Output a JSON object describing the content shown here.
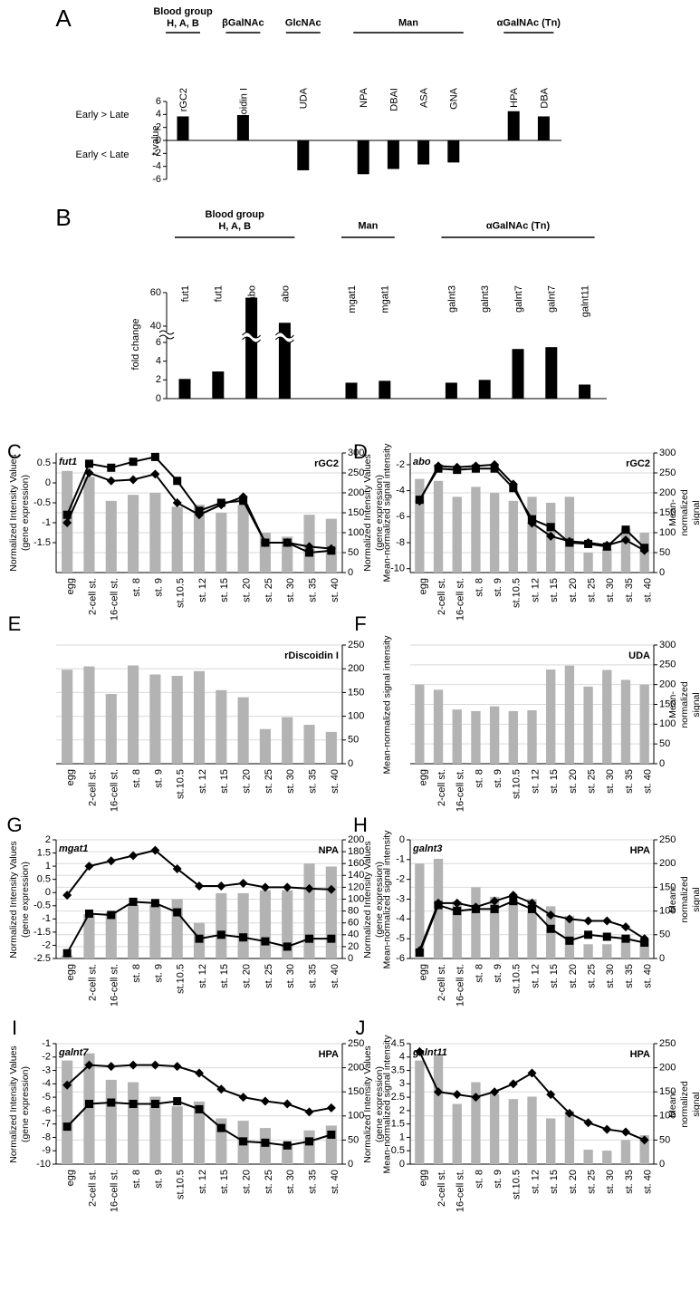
{
  "chart_data": [
    {
      "type": "grouped-bar",
      "panel": "A",
      "ylabel": "t-value",
      "annotations": [
        "Early > Late",
        "Early < Late"
      ],
      "ylim": [
        -6,
        6
      ],
      "yticks": [
        -6,
        -4,
        -2,
        0,
        2,
        4,
        6
      ],
      "color": "#000000",
      "groups": [
        {
          "label": "Blood group\nH, A, B",
          "categories": [
            "rGC2"
          ],
          "values": [
            3.7
          ]
        },
        {
          "label": "βGalNAc",
          "categories": [
            "rDiscoidin I"
          ],
          "values": [
            3.9
          ]
        },
        {
          "label": "GlcNAc",
          "categories": [
            "UDA"
          ],
          "values": [
            -4.6
          ]
        },
        {
          "label": "Man",
          "categories": [
            "NPA",
            "DBAI",
            "ASA",
            "GNA"
          ],
          "values": [
            -5.2,
            -4.4,
            -3.7,
            -3.4
          ]
        },
        {
          "label": "αGalNAc (Tn)",
          "categories": [
            "HPA",
            "DBA"
          ],
          "values": [
            4.5,
            3.7
          ]
        }
      ]
    },
    {
      "type": "grouped-bar",
      "panel": "B",
      "ylabel": "fold change",
      "ylim": [
        0,
        60
      ],
      "ybreak": [
        6,
        40
      ],
      "yticks": [
        0,
        2,
        4,
        6,
        40,
        60
      ],
      "color": "#000000",
      "groups": [
        {
          "label": "Blood group\nH, A, B",
          "categories": [
            "fut1",
            "fut1",
            "abo",
            "abo"
          ],
          "values": [
            2.1,
            2.9,
            57,
            42
          ]
        },
        {
          "label": "Man",
          "categories": [
            "mgat1",
            "mgat1"
          ],
          "values": [
            1.7,
            1.9
          ]
        },
        {
          "label": "αGalNAc (Tn)",
          "categories": [
            "galnt3",
            "galnt3",
            "galnt7",
            "galnt7",
            "galnt11"
          ],
          "values": [
            1.7,
            2.0,
            5.3,
            5.5,
            1.5
          ]
        }
      ]
    },
    {
      "type": "combo",
      "panel": "C",
      "gene": "fut1",
      "lectin": "rGC2",
      "ylabel": "Normalized Intensity Values\n(gene expression)",
      "y2label": "Mean-normalized signal intensity",
      "categories": [
        "egg",
        "2-cell st.",
        "16-cell st.",
        "st. 8",
        "st. 9",
        "st.10.5",
        "st. 12",
        "st. 15",
        "st. 20",
        "st. 25",
        "st. 30",
        "st. 35",
        "st. 40"
      ],
      "ylim": [
        -2.25,
        0.75
      ],
      "yticks": [
        -1.5,
        -1,
        -0.5,
        0,
        0.5
      ],
      "y2lim": [
        0,
        300
      ],
      "y2ticks": [
        0,
        50,
        100,
        150,
        200,
        250,
        300
      ],
      "grid": true,
      "series": [
        {
          "type": "bar",
          "axis": "y2",
          "color": "#b3b3b3",
          "values": [
            255,
            240,
            180,
            195,
            200,
            165,
            170,
            150,
            170,
            100,
            90,
            145,
            135
          ]
        },
        {
          "type": "line",
          "marker": "diamond",
          "color": "#000000",
          "values": [
            -1.0,
            0.25,
            0.05,
            0.08,
            0.22,
            -0.5,
            -0.8,
            -0.55,
            -0.35,
            -1.5,
            -1.5,
            -1.6,
            -1.65
          ]
        },
        {
          "type": "line",
          "marker": "square",
          "color": "#000000",
          "values": [
            -0.8,
            0.48,
            0.38,
            0.53,
            0.65,
            0.05,
            -0.7,
            -0.5,
            -0.45,
            -1.5,
            -1.5,
            -1.75,
            -1.7
          ]
        }
      ]
    },
    {
      "type": "combo",
      "panel": "D",
      "gene": "abo",
      "lectin": "rGC2",
      "ylabel": "Normalized Intensity Values\n(gene expression)",
      "y2label": "Mean-normalized signal intensity",
      "categories": [
        "egg",
        "2-cell st.",
        "16-cell st.",
        "st. 8",
        "st. 9",
        "st.10.5",
        "st. 12",
        "st. 15",
        "st. 20",
        "st. 25",
        "st. 30",
        "st. 35",
        "st. 40"
      ],
      "ylim": [
        -10.3,
        -1.1
      ],
      "yticks": [
        -10,
        -8,
        -6,
        -4,
        -2
      ],
      "y2lim": [
        0,
        300
      ],
      "y2ticks": [
        0,
        50,
        100,
        150,
        200,
        250,
        300
      ],
      "grid": true,
      "series": [
        {
          "type": "bar",
          "axis": "y2",
          "color": "#b3b3b3",
          "values": [
            235,
            230,
            190,
            215,
            200,
            180,
            190,
            175,
            190,
            50,
            60,
            110,
            100
          ]
        },
        {
          "type": "line",
          "marker": "diamond",
          "color": "#000000",
          "values": [
            -4.8,
            -2.1,
            -2.2,
            -2.1,
            -2.0,
            -3.5,
            -6.5,
            -7.5,
            -7.9,
            -8.0,
            -8.2,
            -7.8,
            -8.6
          ]
        },
        {
          "type": "line",
          "marker": "square",
          "color": "#000000",
          "values": [
            -4.7,
            -2.3,
            -2.4,
            -2.3,
            -2.3,
            -3.8,
            -6.2,
            -6.8,
            -8.0,
            -8.1,
            -8.3,
            -7.0,
            -8.4
          ]
        }
      ]
    },
    {
      "type": "combo",
      "panel": "E",
      "lectin": "rDiscoidin I",
      "y2label": "Mean-normalized signal intensity",
      "categories": [
        "egg",
        "2-cell st.",
        "16-cell st.",
        "st. 8",
        "st. 9",
        "st.10.5",
        "st. 12",
        "st. 15",
        "st. 20",
        "st. 25",
        "st. 30",
        "st. 35",
        "st. 40"
      ],
      "y2lim": [
        0,
        250
      ],
      "y2ticks": [
        0,
        50,
        100,
        150,
        200,
        250
      ],
      "grid": true,
      "series": [
        {
          "type": "bar",
          "axis": "y2",
          "color": "#b3b3b3",
          "values": [
            198,
            205,
            147,
            207,
            188,
            185,
            195,
            155,
            140,
            73,
            98,
            82,
            67
          ]
        }
      ]
    },
    {
      "type": "combo",
      "panel": "F",
      "lectin": "UDA",
      "y2label": "Mean-normalized signal intensity",
      "categories": [
        "egg",
        "2-cell st.",
        "16-cell st.",
        "st. 8",
        "st. 9",
        "st.10.5",
        "st. 12",
        "st. 15",
        "st. 20",
        "st. 25",
        "st. 30",
        "st. 35",
        "st. 40"
      ],
      "y2lim": [
        0,
        300
      ],
      "y2ticks": [
        0,
        50,
        100,
        150,
        200,
        250,
        300
      ],
      "grid": true,
      "series": [
        {
          "type": "bar",
          "axis": "y2",
          "color": "#b3b3b3",
          "values": [
            200,
            187,
            137,
            133,
            145,
            133,
            135,
            238,
            248,
            195,
            237,
            212,
            200
          ]
        }
      ]
    },
    {
      "type": "combo",
      "panel": "G",
      "gene": "mgat1",
      "lectin": "NPA",
      "ylabel": "Normalized Intensity Values\n(gene expression)",
      "y2label": "Mean-normalized signal intensity",
      "categories": [
        "egg",
        "2-cell st.",
        "16-cell st.",
        "st. 8",
        "st. 9",
        "st.10.5",
        "st. 12",
        "st. 15",
        "st. 20",
        "st. 25",
        "st. 30",
        "st. 35",
        "st. 40"
      ],
      "ylim": [
        -2.5,
        2
      ],
      "yticks": [
        -2.5,
        -2,
        -1.5,
        -1,
        -0.5,
        0,
        0.5,
        1,
        1.5,
        2
      ],
      "y2lim": [
        0,
        200
      ],
      "y2ticks": [
        0,
        20,
        40,
        60,
        80,
        100,
        120,
        140,
        160,
        180,
        200
      ],
      "grid": true,
      "series": [
        {
          "type": "bar",
          "axis": "y2",
          "color": "#b3b3b3",
          "values": [
            5,
            75,
            78,
            90,
            90,
            100,
            60,
            110,
            110,
            115,
            115,
            160,
            155
          ]
        },
        {
          "type": "line",
          "marker": "diamond",
          "color": "#000000",
          "values": [
            -0.1,
            1.0,
            1.2,
            1.4,
            1.6,
            0.9,
            0.25,
            0.25,
            0.35,
            0.2,
            0.2,
            0.15,
            0.12
          ]
        },
        {
          "type": "line",
          "marker": "square",
          "color": "#000000",
          "values": [
            -2.3,
            -0.8,
            -0.85,
            -0.35,
            -0.4,
            -0.75,
            -1.75,
            -1.6,
            -1.7,
            -1.85,
            -2.05,
            -1.75,
            -1.75
          ]
        }
      ]
    },
    {
      "type": "combo",
      "panel": "H",
      "gene": "galnt3",
      "lectin": "HPA",
      "ylabel": "Normalized Intensity Values\n(gene expression)",
      "y2label": "Mean-normalized signal intensity",
      "categories": [
        "egg",
        "2-cell st.",
        "16-cell st.",
        "st. 8",
        "st. 9",
        "st.10.5",
        "st. 12",
        "st. 15",
        "st. 20",
        "st. 25",
        "st. 30",
        "st. 35",
        "st. 40"
      ],
      "ylim": [
        -6,
        0
      ],
      "yticks": [
        -6,
        -5,
        -4,
        -3,
        -2,
        -1,
        0
      ],
      "y2lim": [
        0,
        250
      ],
      "y2ticks": [
        0,
        50,
        100,
        150,
        200,
        250
      ],
      "grid": true,
      "series": [
        {
          "type": "bar",
          "axis": "y2",
          "color": "#b3b3b3",
          "values": [
            200,
            210,
            120,
            150,
            130,
            120,
            125,
            110,
            90,
            30,
            30,
            50,
            40
          ]
        },
        {
          "type": "line",
          "marker": "diamond",
          "color": "#000000",
          "values": [
            -5.6,
            -3.2,
            -3.2,
            -3.4,
            -3.1,
            -2.8,
            -3.2,
            -3.8,
            -4.0,
            -4.1,
            -4.1,
            -4.4,
            -5.0
          ]
        },
        {
          "type": "line",
          "marker": "square",
          "color": "#000000",
          "values": [
            -5.7,
            -3.3,
            -3.6,
            -3.5,
            -3.5,
            -3.1,
            -3.5,
            -4.5,
            -5.1,
            -4.8,
            -4.9,
            -5.0,
            -5.2
          ]
        }
      ]
    },
    {
      "type": "combo",
      "panel": "I",
      "gene": "galnt7",
      "lectin": "HPA",
      "ylabel": "Normalized Intensity Values\n(gene expression)",
      "y2label": "Mean-normalized signal intensity",
      "categories": [
        "egg",
        "2-cell st.",
        "16-cell st.",
        "st. 8",
        "st. 9",
        "st.10.5",
        "st. 12",
        "st. 15",
        "st. 20",
        "st. 25",
        "st. 30",
        "st. 35",
        "st. 40"
      ],
      "ylim": [
        -10,
        -1
      ],
      "yticks": [
        -10,
        -9,
        -8,
        -7,
        -6,
        -5,
        -4,
        -3,
        -2,
        -1
      ],
      "y2lim": [
        0,
        250
      ],
      "y2ticks": [
        0,
        50,
        100,
        150,
        200,
        250
      ],
      "grid": true,
      "series": [
        {
          "type": "bar",
          "axis": "y2",
          "color": "#b3b3b3",
          "values": [
            215,
            230,
            175,
            170,
            140,
            120,
            130,
            95,
            90,
            75,
            40,
            70,
            80
          ]
        },
        {
          "type": "line",
          "marker": "diamond",
          "color": "#000000",
          "values": [
            -4.1,
            -2.6,
            -2.7,
            -2.6,
            -2.6,
            -2.7,
            -3.2,
            -4.4,
            -5.0,
            -5.3,
            -5.5,
            -6.1,
            -5.8
          ]
        },
        {
          "type": "line",
          "marker": "square",
          "color": "#000000",
          "values": [
            -7.2,
            -5.5,
            -5.4,
            -5.5,
            -5.5,
            -5.3,
            -5.9,
            -7.3,
            -8.3,
            -8.4,
            -8.6,
            -8.3,
            -7.8
          ]
        }
      ]
    },
    {
      "type": "combo",
      "panel": "J",
      "gene": "galnt11",
      "lectin": "HPA",
      "ylabel": "Normalized Intensity Values\n(gene expression)",
      "y2label": "Mean-normalized signal intensity",
      "categories": [
        "egg",
        "2-cell st.",
        "16-cell st.",
        "st. 8",
        "st. 9",
        "st.10.5",
        "st. 12",
        "st. 15",
        "st. 20",
        "st. 25",
        "st. 30",
        "st. 35",
        "st. 40"
      ],
      "ylim": [
        0,
        4.5
      ],
      "yticks": [
        0,
        0.5,
        1,
        1.5,
        2,
        2.5,
        3,
        3.5,
        4,
        4.5
      ],
      "y2lim": [
        0,
        250
      ],
      "y2ticks": [
        0,
        50,
        100,
        150,
        200,
        250
      ],
      "grid": true,
      "series": [
        {
          "type": "bar",
          "axis": "y2",
          "color": "#b3b3b3",
          "values": [
            215,
            225,
            125,
            170,
            145,
            135,
            140,
            95,
            110,
            30,
            28,
            50,
            60
          ]
        },
        {
          "type": "line",
          "marker": "diamond",
          "color": "#000000",
          "values": [
            4.2,
            2.7,
            2.6,
            2.5,
            2.7,
            3.0,
            3.4,
            2.6,
            1.9,
            1.55,
            1.3,
            1.2,
            0.9
          ]
        }
      ]
    }
  ]
}
